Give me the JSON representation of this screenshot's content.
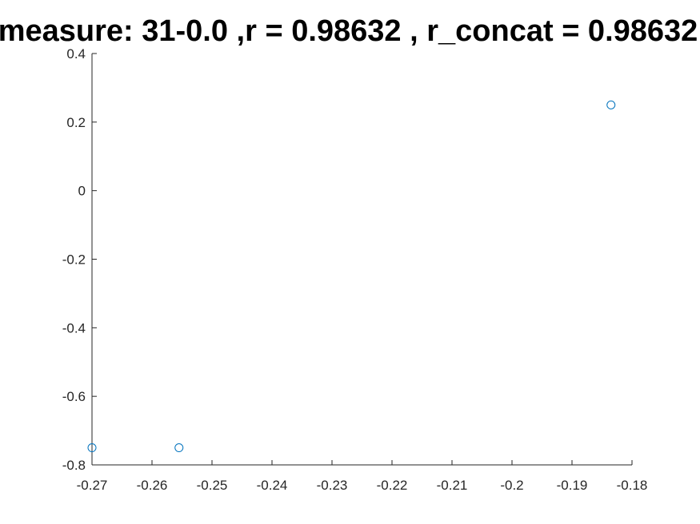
{
  "chart_data": {
    "type": "scatter",
    "title": "measure: 31-0.0 ,r = 0.98632 , r_concat = 0.98632",
    "xlabel": "",
    "ylabel": "",
    "xlim": [
      -0.27,
      -0.18
    ],
    "ylim": [
      -0.8,
      0.4
    ],
    "grid": false,
    "x_ticks": [
      -0.27,
      -0.26,
      -0.25,
      -0.24,
      -0.23,
      -0.22,
      -0.21,
      -0.2,
      -0.19,
      -0.18
    ],
    "x_tick_labels": [
      "-0.27",
      "-0.26",
      "-0.25",
      "-0.24",
      "-0.23",
      "-0.22",
      "-0.21",
      "-0.2",
      "-0.19",
      "-0.18"
    ],
    "y_ticks": [
      0.4,
      0.2,
      0,
      -0.2,
      -0.4,
      -0.6,
      -0.8
    ],
    "y_tick_labels": [
      "0.4",
      "0.2",
      "0",
      "-0.2",
      "-0.4",
      "-0.6",
      "-0.8"
    ],
    "series": [
      {
        "marker": "circle-open",
        "color": "#0072BD",
        "points": [
          {
            "x": -0.27,
            "y": -0.75
          },
          {
            "x": -0.2555,
            "y": -0.75
          },
          {
            "x": -0.1835,
            "y": 0.25
          }
        ]
      }
    ]
  }
}
